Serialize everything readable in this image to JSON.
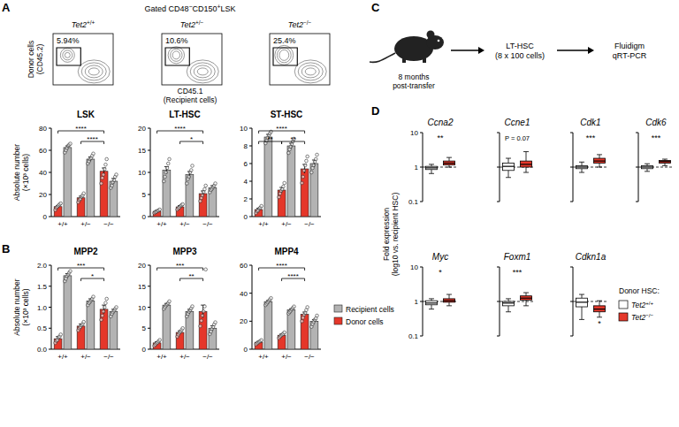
{
  "panel_labels": [
    "A",
    "B",
    "C",
    "D"
  ],
  "flow_plots": {
    "gate_title": [
      {
        "text": "Gated CD48"
      },
      {
        "text": "−",
        "sup": true
      },
      {
        "text": "CD150"
      },
      {
        "text": "+",
        "sup": true
      },
      {
        "text": "LSK"
      }
    ],
    "y_label": [
      "Donor cells",
      "(CD45.2)"
    ],
    "x_label": [
      "CD45.1",
      "(Recipient cells)"
    ],
    "plots": [
      {
        "title": "Tet2+/+",
        "gate_label": "5.94%"
      },
      {
        "title": "Tet2+/−",
        "gate_label": "10.6%"
      },
      {
        "title": "Tet2−/−",
        "gate_label": "25.4%"
      }
    ]
  },
  "schematic": {
    "caption": [
      "8 months",
      "post-transfer"
    ],
    "steps": [
      [
        "LT-HSC",
        "(8 x 100 cells)"
      ],
      [
        "Fluidigm",
        "qRT-PCR"
      ]
    ]
  },
  "chart_data": [
    {
      "type": "bar",
      "title": "LSK",
      "y_label": [
        "Absolute number",
        "(×10³ cells)"
      ],
      "categories": [
        "+/+",
        "+/−",
        "−/−"
      ],
      "ylim": [
        0,
        80
      ],
      "yticks": [
        0,
        20,
        40,
        60,
        80
      ],
      "series": [
        {
          "color": "#e5372a",
          "values": [
            9,
            17,
            41
          ],
          "errors": [
            1,
            1.5,
            3
          ],
          "points": [
            [
              6,
              8,
              9,
              10,
              11,
              12
            ],
            [
              13,
              15,
              16,
              18,
              19,
              21
            ],
            [
              30,
              35,
              38,
              43,
              47,
              52
            ]
          ]
        },
        {
          "color": "#b3b3b3",
          "values": [
            62.5,
            52,
            32
          ],
          "errors": [
            1.5,
            2,
            2.5
          ],
          "points": [
            [
              58,
              60,
              62,
              64,
              65,
              66
            ],
            [
              48,
              50,
              52,
              53,
              55,
              57
            ],
            [
              26,
              28,
              31,
              33,
              36,
              38
            ]
          ]
        }
      ],
      "annotations": [
        {
          "text": "****",
          "between": [
            "+/+",
            "−/−"
          ]
        },
        {
          "text": "****",
          "between": [
            "+/−",
            "−/−"
          ]
        }
      ]
    },
    {
      "type": "bar",
      "title": "LT-HSC",
      "categories": [
        "+/+",
        "+/−",
        "−/−"
      ],
      "ylim": [
        0,
        20
      ],
      "yticks": [
        0,
        5,
        10,
        15,
        20
      ],
      "series": [
        {
          "color": "#e5372a",
          "values": [
            1.2,
            2.2,
            5.2
          ],
          "errors": [
            0.2,
            0.3,
            0.6
          ],
          "points": [
            [
              0.8,
              1,
              1.1,
              1.3,
              1.4,
              1.6
            ],
            [
              1.6,
              1.9,
              2.1,
              2.4,
              2.6,
              2.8
            ],
            [
              3.5,
              4.2,
              4.8,
              5.6,
              6.2,
              7
            ]
          ]
        },
        {
          "color": "#b3b3b3",
          "values": [
            10.5,
            9.5,
            6.5
          ],
          "errors": [
            0.8,
            0.7,
            0.5
          ],
          "points": [
            [
              8,
              9,
              10,
              11,
              12,
              13
            ],
            [
              7.5,
              8.5,
              9,
              10,
              10.5,
              11.5
            ],
            [
              5.5,
              6,
              6.3,
              6.7,
              7,
              7.5
            ]
          ]
        }
      ],
      "annotations": [
        {
          "text": "****",
          "between": [
            "+/+",
            "−/−"
          ]
        },
        {
          "text": "*",
          "between": [
            "+/−",
            "−/−"
          ]
        }
      ]
    },
    {
      "type": "bar",
      "title": "ST-HSC",
      "categories": [
        "+/+",
        "+/−",
        "−/−"
      ],
      "ylim": [
        0,
        10
      ],
      "yticks": [
        0,
        2,
        4,
        6,
        8,
        10
      ],
      "series": [
        {
          "color": "#e5372a",
          "values": [
            0.8,
            3,
            5.4
          ],
          "errors": [
            0.15,
            0.3,
            0.5
          ],
          "points": [
            [
              0.4,
              0.6,
              0.7,
              0.9,
              1,
              1.2
            ],
            [
              2.2,
              2.6,
              2.9,
              3.1,
              3.4,
              3.8
            ],
            [
              3.8,
              4.5,
              5.2,
              5.8,
              6.3,
              6.8
            ]
          ]
        },
        {
          "color": "#b3b3b3",
          "values": [
            9,
            8,
            6
          ],
          "errors": [
            0.3,
            0.3,
            0.4
          ],
          "points": [
            [
              8.3,
              8.6,
              8.9,
              9.2,
              9.4,
              9.6
            ],
            [
              7.2,
              7.6,
              7.9,
              8.2,
              8.5,
              8.8
            ],
            [
              5,
              5.5,
              5.8,
              6.2,
              6.5,
              7
            ]
          ]
        }
      ],
      "annotations": [
        {
          "text": "**",
          "between": [
            "+/+",
            "+/−"
          ]
        },
        {
          "text": "****",
          "between": [
            "+/+",
            "−/−"
          ]
        },
        {
          "text": "**",
          "between": [
            "+/−",
            "−/−"
          ]
        }
      ]
    },
    {
      "type": "bar",
      "title": "MPP2",
      "y_label": [
        "Absolute number",
        "(×10³ cells)"
      ],
      "categories": [
        "+/+",
        "+/−",
        "−/−"
      ],
      "ylim": [
        0,
        2
      ],
      "yticks": [
        {
          "value": 0,
          "label": "0.0"
        },
        0.5,
        {
          "value": 1,
          "label": "1.0"
        },
        1.5,
        {
          "value": 2,
          "label": "2.0"
        }
      ],
      "series": [
        {
          "color": "#e5372a",
          "values": [
            0.25,
            0.55,
            0.95
          ],
          "errors": [
            0.05,
            0.05,
            0.1
          ],
          "points": [
            [
              0.15,
              0.2,
              0.22,
              0.28,
              0.3,
              0.35
            ],
            [
              0.45,
              0.5,
              0.53,
              0.57,
              0.6,
              0.65
            ],
            [
              0.7,
              0.8,
              0.9,
              1,
              1.1,
              1.2
            ]
          ]
        },
        {
          "color": "#b3b3b3",
          "values": [
            1.75,
            1.15,
            0.9
          ],
          "errors": [
            0.05,
            0.05,
            0.05
          ],
          "points": [
            [
              1.62,
              1.68,
              1.74,
              1.78,
              1.82,
              1.86
            ],
            [
              1.05,
              1.1,
              1.13,
              1.17,
              1.2,
              1.25
            ],
            [
              0.78,
              0.84,
              0.88,
              0.92,
              0.96,
              1
            ]
          ]
        }
      ],
      "annotations": [
        {
          "text": "***",
          "between": [
            "+/+",
            "−/−"
          ]
        },
        {
          "text": "*",
          "between": [
            "+/−",
            "−/−"
          ]
        }
      ]
    },
    {
      "type": "bar",
      "title": "MPP3",
      "categories": [
        "+/+",
        "+/−",
        "−/−"
      ],
      "ylim": [
        0,
        20
      ],
      "yticks": [
        0,
        5,
        10,
        15,
        20
      ],
      "series": [
        {
          "color": "#e5372a",
          "values": [
            1.5,
            4,
            9
          ],
          "errors": [
            0.3,
            0.4,
            1.5
          ],
          "points": [
            [
              0.8,
              1.1,
              1.4,
              1.6,
              1.9,
              2.2
            ],
            [
              3,
              3.5,
              3.9,
              4.2,
              4.6,
              5
            ],
            [
              5.5,
              6.8,
              8,
              9,
              10.2,
              19
            ]
          ]
        },
        {
          "color": "#b3b3b3",
          "values": [
            10.5,
            9,
            5
          ],
          "errors": [
            0.4,
            0.5,
            0.6
          ],
          "points": [
            [
              9.6,
              10,
              10.4,
              10.7,
              11,
              11.4
            ],
            [
              7.8,
              8.4,
              8.9,
              9.3,
              9.7,
              10.2
            ],
            [
              3.6,
              4.2,
              4.8,
              5.3,
              5.9,
              6.4
            ]
          ]
        }
      ],
      "annotations": [
        {
          "text": "***",
          "between": [
            "+/+",
            "−/−"
          ]
        },
        {
          "text": "**",
          "between": [
            "+/−",
            "−/−"
          ]
        }
      ]
    },
    {
      "type": "bar",
      "title": "MPP4",
      "categories": [
        "+/+",
        "+/−",
        "−/−"
      ],
      "ylim": [
        0,
        60
      ],
      "yticks": [
        0,
        20,
        40,
        60
      ],
      "legend": "right",
      "series": [
        {
          "name": "Donor cells",
          "color": "#e5372a",
          "values": [
            5,
            10,
            25
          ],
          "errors": [
            0.6,
            0.8,
            1.5
          ],
          "points": [
            [
              3.5,
              4.2,
              4.8,
              5.3,
              5.8,
              6.5
            ],
            [
              8,
              9,
              9.8,
              10.4,
              11,
              12
            ],
            [
              20,
              22.5,
              24.5,
              26,
              28,
              30
            ]
          ]
        },
        {
          "name": "Recipient cells",
          "color": "#b3b3b3",
          "values": [
            34,
            28,
            20
          ],
          "errors": [
            0.8,
            0.9,
            1.2
          ],
          "points": [
            [
              31.5,
              32.5,
              33.5,
              34.5,
              35.5,
              36.5
            ],
            [
              25.5,
              26.5,
              27.5,
              28.5,
              29.5,
              30.5
            ],
            [
              16,
              18,
              19.5,
              21,
              22,
              24
            ]
          ]
        }
      ],
      "annotations": [
        {
          "text": "****",
          "between": [
            "+/+",
            "−/−"
          ]
        },
        {
          "text": "****",
          "between": [
            "+/−",
            "−/−"
          ]
        }
      ]
    },
    {
      "type": "box",
      "title": "Ccna2",
      "y_label": [
        "Fold expression",
        "(log10 vs. recipient HSC)"
      ],
      "log": "y",
      "tick_labels": "y",
      "ylim": [
        0.1,
        10
      ],
      "yticks": [
        0.1,
        1,
        10
      ],
      "baseline": 1,
      "annotation": "**",
      "series": [
        {
          "color": "#ffffff",
          "min": 0.65,
          "q1": 0.85,
          "median": 0.95,
          "q3": 1.05,
          "max": 1.2
        },
        {
          "color": "#e5372a",
          "min": 1,
          "q1": 1.15,
          "median": 1.3,
          "q3": 1.5,
          "max": 1.9
        }
      ]
    },
    {
      "type": "box",
      "title": "Ccne1",
      "log": "y",
      "tick_labels": false,
      "ylim": [
        0.1,
        10
      ],
      "yticks": [
        0.1,
        1,
        10
      ],
      "baseline": 1,
      "annotation": "P = 0.07",
      "series": [
        {
          "color": "#ffffff",
          "min": 0.5,
          "q1": 0.8,
          "median": 1.05,
          "q3": 1.3,
          "max": 1.8
        },
        {
          "color": "#e5372a",
          "min": 0.7,
          "q1": 1,
          "median": 1.2,
          "q3": 1.5,
          "max": 2.8
        }
      ]
    },
    {
      "type": "box",
      "title": "Cdk1",
      "log": "y",
      "tick_labels": false,
      "ylim": [
        0.1,
        10
      ],
      "yticks": [
        0.1,
        1,
        10
      ],
      "baseline": 1,
      "annotation": "***",
      "series": [
        {
          "color": "#ffffff",
          "min": 0.7,
          "q1": 0.9,
          "median": 1,
          "q3": 1.1,
          "max": 1.4
        },
        {
          "color": "#e5372a",
          "min": 1,
          "q1": 1.3,
          "median": 1.5,
          "q3": 1.8,
          "max": 2.3
        }
      ]
    },
    {
      "type": "box",
      "title": "Cdk6",
      "log": "y",
      "tick_labels": false,
      "ylim": [
        0.1,
        10
      ],
      "yticks": [
        0.1,
        1,
        10
      ],
      "baseline": 1,
      "annotation": "***",
      "series": [
        {
          "color": "#ffffff",
          "min": 0.75,
          "q1": 0.9,
          "median": 1,
          "q3": 1.1,
          "max": 1.25
        },
        {
          "color": "#e5372a",
          "min": 1.1,
          "q1": 1.3,
          "median": 1.45,
          "q3": 1.55,
          "max": 1.7
        }
      ]
    },
    {
      "type": "box",
      "title": "Myc",
      "log": "y",
      "tick_labels": "y",
      "ylim": [
        0.1,
        10
      ],
      "yticks": [
        0.1,
        1,
        10
      ],
      "baseline": 1,
      "annotation": "*",
      "series": [
        {
          "color": "#ffffff",
          "min": 0.6,
          "q1": 0.8,
          "median": 0.9,
          "q3": 1.05,
          "max": 1.2
        },
        {
          "color": "#e5372a",
          "min": 0.75,
          "q1": 0.95,
          "median": 1.05,
          "q3": 1.2,
          "max": 1.6
        }
      ]
    },
    {
      "type": "box",
      "title": "Foxm1",
      "log": "y",
      "tick_labels": false,
      "ylim": [
        0.1,
        10
      ],
      "yticks": [
        0.1,
        1,
        10
      ],
      "baseline": 1,
      "annotation": "***",
      "series": [
        {
          "color": "#ffffff",
          "min": 0.5,
          "q1": 0.75,
          "median": 0.9,
          "q3": 1,
          "max": 1.2
        },
        {
          "color": "#e5372a",
          "min": 0.75,
          "q1": 1.1,
          "median": 1.25,
          "q3": 1.45,
          "max": 1.8
        }
      ]
    },
    {
      "type": "box",
      "title": "Cdkn1a",
      "log": "y",
      "tick_labels": false,
      "ylim": [
        0.1,
        10
      ],
      "yticks": [
        0.1,
        1,
        10
      ],
      "baseline": 1,
      "legend": "right",
      "legend_title": "Donor HSC:",
      "series": [
        {
          "name": "Tet2+/+",
          "color": "#ffffff",
          "min": 0.3,
          "q1": 0.7,
          "median": 0.95,
          "q3": 1.25,
          "max": 1.6
        },
        {
          "name": "Tet2−/−",
          "color": "#e5372a",
          "min": 0.35,
          "q1": 0.5,
          "median": 0.6,
          "q3": 0.75,
          "max": 1.05,
          "annotation": "*"
        }
      ]
    }
  ]
}
